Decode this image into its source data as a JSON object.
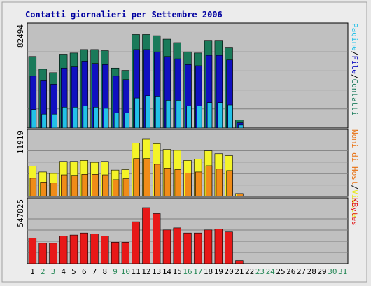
{
  "chart_data": {
    "type": "bar",
    "title": "Contatti giornalieri per Settembre 2006",
    "categories": [
      "1",
      "2",
      "3",
      "4",
      "5",
      "6",
      "7",
      "8",
      "9",
      "10",
      "11",
      "12",
      "13",
      "14",
      "15",
      "16",
      "17",
      "18",
      "19",
      "20",
      "21",
      "22",
      "23",
      "24",
      "25",
      "26",
      "27",
      "28",
      "29",
      "30",
      "31"
    ],
    "weekend_days": [
      "2",
      "3",
      "9",
      "10",
      "16",
      "17",
      "23",
      "24",
      "30",
      "31"
    ],
    "grid": true,
    "panels": [
      {
        "id": "contatti",
        "max_label": "82494",
        "ymax": 82494,
        "right_label_parts": [
          {
            "text": "Pagine",
            "color": "#22c0e8"
          },
          {
            "text": "/",
            "color": "#000000"
          },
          {
            "text": "File",
            "color": "#1010c0"
          },
          {
            "text": "/",
            "color": "#000000"
          },
          {
            "text": "Contatti",
            "color": "#1a7a5a"
          }
        ],
        "series": [
          {
            "name": "Contatti",
            "color": "#1a7a5a",
            "values": [
              62000,
              51000,
              48000,
              64000,
              65000,
              68000,
              68000,
              67000,
              52000,
              50000,
              81000,
              81000,
              80000,
              77000,
              74000,
              66000,
              65000,
              76000,
              76000,
              70000,
              7000,
              0,
              0,
              0,
              0,
              0,
              0,
              0,
              0,
              0,
              0
            ]
          },
          {
            "name": "File",
            "color": "#1010c0",
            "values": [
              45000,
              41000,
              38000,
              52000,
              53000,
              58000,
              56000,
              55000,
              45000,
              42000,
              68000,
              68000,
              66000,
              62000,
              60000,
              55000,
              54000,
              63000,
              63000,
              59000,
              4500,
              0,
              0,
              0,
              0,
              0,
              0,
              0,
              0,
              0,
              0
            ]
          },
          {
            "name": "Pagine",
            "color": "#22c0e8",
            "values": [
              16000,
              12000,
              12000,
              18000,
              18000,
              19000,
              18000,
              17000,
              13000,
              13000,
              26000,
              28000,
              27000,
              24000,
              24000,
              19000,
              19000,
              22000,
              22000,
              20000,
              2500,
              0,
              0,
              0,
              0,
              0,
              0,
              0,
              0,
              0,
              0
            ]
          }
        ]
      },
      {
        "id": "visite",
        "max_label": "11919",
        "ymax": 11919,
        "right_label_parts": [
          {
            "text": "Nomi di Host",
            "color": "#e87010"
          },
          {
            "text": "/",
            "color": "#000000"
          },
          {
            "text": "Visite",
            "color": "#e8e820"
          }
        ],
        "series": [
          {
            "name": "Visite",
            "color": "#f4f428",
            "values": [
              6300,
              5100,
              4800,
              7300,
              7300,
              7500,
              7100,
              7300,
              5500,
              5600,
              11100,
              11919,
              11000,
              9800,
              9600,
              7500,
              7800,
              9500,
              8900,
              8500,
              600,
              0,
              0,
              0,
              0,
              0,
              0,
              0,
              0,
              0,
              0
            ]
          },
          {
            "name": "Nomi di Host",
            "color": "#f08c18",
            "values": [
              3800,
              3000,
              2800,
              4500,
              4400,
              4600,
              4600,
              4500,
              3500,
              3700,
              7900,
              7900,
              6700,
              5900,
              5600,
              4900,
              5100,
              6400,
              5700,
              5400,
              500,
              0,
              0,
              0,
              0,
              0,
              0,
              0,
              0,
              0,
              0
            ]
          }
        ]
      },
      {
        "id": "kbytes",
        "max_label": "547825",
        "ymax": 547825,
        "right_label_parts": [
          {
            "text": "KBytes",
            "color": "#e01010"
          }
        ],
        "series": [
          {
            "name": "KBytes",
            "color": "#e81818",
            "values": [
              250000,
              200000,
              200000,
              270000,
              280000,
              300000,
              290000,
              270000,
              210000,
              210000,
              410000,
              547825,
              490000,
              330000,
              350000,
              300000,
              300000,
              330000,
              340000,
              310000,
              30000,
              0,
              0,
              0,
              0,
              0,
              0,
              0,
              0,
              0,
              0
            ]
          }
        ]
      }
    ]
  },
  "colors": {
    "title": "#0000a0",
    "weekday_label": "#000000",
    "weekend_label": "#2a8a5a",
    "plot_bg": "#c0c0c0",
    "outer_bg": "#e8e8e8"
  }
}
